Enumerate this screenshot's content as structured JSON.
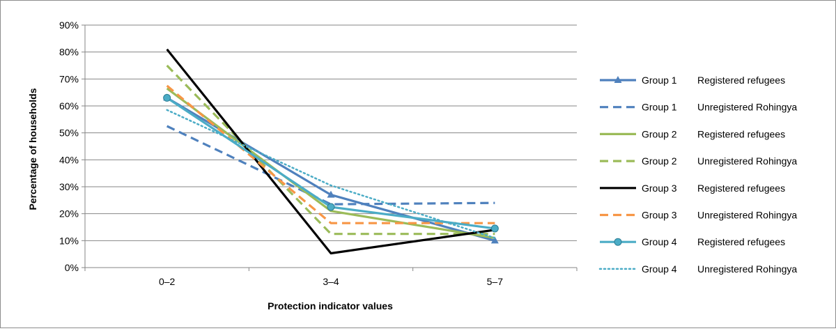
{
  "chart_data": {
    "type": "line",
    "title": "",
    "xlabel": "Protection indicator values",
    "ylabel": "Percentage of households",
    "categories": [
      "0–2",
      "3–4",
      "5–7"
    ],
    "ylim": [
      0,
      90
    ],
    "yticks": [
      "0%",
      "10%",
      "20%",
      "30%",
      "40%",
      "50%",
      "60%",
      "70%",
      "80%",
      "90%"
    ],
    "grid": true,
    "legend_position": "right",
    "series": [
      {
        "group": "Group 1",
        "status": "Registered refugees",
        "values": [
          63,
          27,
          10
        ],
        "color": "#4f81bd",
        "dash": "solid",
        "marker": "triangle"
      },
      {
        "group": "Group 1",
        "status": "Unregistered Rohingya",
        "values": [
          52.5,
          23.5,
          24
        ],
        "color": "#4f81bd",
        "dash": "dashed",
        "marker": "none"
      },
      {
        "group": "Group 2",
        "status": "Registered refugees",
        "values": [
          66.5,
          21,
          11
        ],
        "color": "#9bbb59",
        "dash": "solid",
        "marker": "none"
      },
      {
        "group": "Group 2",
        "status": "Unregistered Rohingya",
        "values": [
          75,
          12.5,
          12.5
        ],
        "color": "#9bbb59",
        "dash": "dashed",
        "marker": "none"
      },
      {
        "group": "Group 3",
        "status": "Registered refugees",
        "values": [
          81,
          5.3,
          14
        ],
        "color": "#000000",
        "dash": "solid",
        "marker": "none"
      },
      {
        "group": "Group 3",
        "status": "Unregistered Rohingya",
        "values": [
          67.5,
          16.5,
          16.5
        ],
        "color": "#f79646",
        "dash": "dashed",
        "marker": "none"
      },
      {
        "group": "Group 4",
        "status": "Registered refugees",
        "values": [
          63,
          22.5,
          14.5
        ],
        "color": "#4bacc6",
        "dash": "solid",
        "marker": "circle"
      },
      {
        "group": "Group 4",
        "status": "Unregistered Rohingya",
        "values": [
          58.5,
          30.5,
          11
        ],
        "color": "#4bacc6",
        "dash": "dotted",
        "marker": "none"
      }
    ]
  }
}
